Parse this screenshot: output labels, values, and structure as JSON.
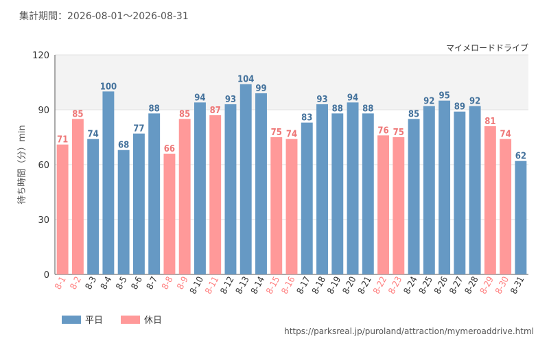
{
  "header": {
    "period_label": "集計期間：2026-08-01～2026-08-31",
    "attraction_name": "マイメロードドライブ",
    "source_url": "https://parksreal.jp/puroland/attraction/mymeroaddrive.html"
  },
  "legend": {
    "weekday_label": "平日",
    "holiday_label": "休日"
  },
  "colors": {
    "weekday": "#6699c4",
    "holiday": "#ff9999",
    "holiday_tick": "#ff7f7f",
    "weekday_tick": "#333333",
    "value_weekday": "#44729c",
    "value_holiday": "#ee7777",
    "band": "#f3f3f3",
    "grid": "#e2e2e2"
  },
  "chart_data": {
    "type": "bar",
    "ylabel": "待ち時間（分）min",
    "ylim": [
      0,
      120
    ],
    "yticks": [
      0,
      30,
      60,
      90,
      120
    ],
    "categories": [
      "8-1",
      "8-2",
      "8-3",
      "8-4",
      "8-5",
      "8-6",
      "8-7",
      "8-8",
      "8-9",
      "8-10",
      "8-11",
      "8-12",
      "8-13",
      "8-14",
      "8-15",
      "8-16",
      "8-17",
      "8-18",
      "8-19",
      "8-20",
      "8-21",
      "8-22",
      "8-23",
      "8-24",
      "8-25",
      "8-26",
      "8-27",
      "8-28",
      "8-29",
      "8-30",
      "8-31"
    ],
    "values": [
      71,
      85,
      74,
      100,
      68,
      77,
      88,
      66,
      85,
      94,
      87,
      93,
      104,
      99,
      75,
      74,
      83,
      93,
      88,
      94,
      88,
      76,
      75,
      85,
      92,
      95,
      89,
      92,
      81,
      74,
      62
    ],
    "day_type": [
      "holiday",
      "holiday",
      "weekday",
      "weekday",
      "weekday",
      "weekday",
      "weekday",
      "holiday",
      "holiday",
      "weekday",
      "holiday",
      "weekday",
      "weekday",
      "weekday",
      "holiday",
      "holiday",
      "weekday",
      "weekday",
      "weekday",
      "weekday",
      "weekday",
      "holiday",
      "holiday",
      "weekday",
      "weekday",
      "weekday",
      "weekday",
      "weekday",
      "holiday",
      "holiday",
      "weekday"
    ],
    "band_range": [
      90,
      120
    ],
    "grid": true,
    "legend_position": "bottom-left"
  }
}
